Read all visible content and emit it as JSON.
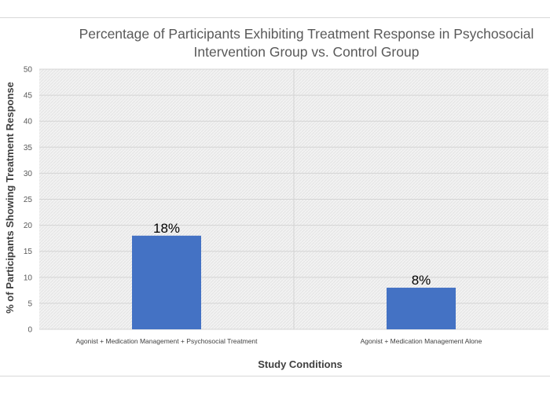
{
  "chart_data": {
    "type": "bar",
    "title": "Percentage of Participants Exhibiting Treatment Response in Psychosocial Intervention Group vs. Control Group",
    "title_lines": [
      "Percentage of Participants Exhibiting Treatment Response in Psychosocial",
      "Intervention Group vs. Control Group"
    ],
    "xlabel": "Study Conditions",
    "ylabel": "% of Participants Showing Treatment Response",
    "categories": [
      "Agonist + Medication Management + Psychosocial Treatment",
      "Agonist + Medication Management Alone"
    ],
    "values": [
      18,
      8
    ],
    "data_labels": [
      "18%",
      "8%"
    ],
    "ylim": [
      0,
      50
    ],
    "yticks": [
      "0",
      "5",
      "10",
      "15",
      "20",
      "25",
      "30",
      "35",
      "40",
      "45",
      "50"
    ],
    "grid": true,
    "legend": "none",
    "bar_color": "#4472C4",
    "plot_background": "#f0f0f0"
  }
}
